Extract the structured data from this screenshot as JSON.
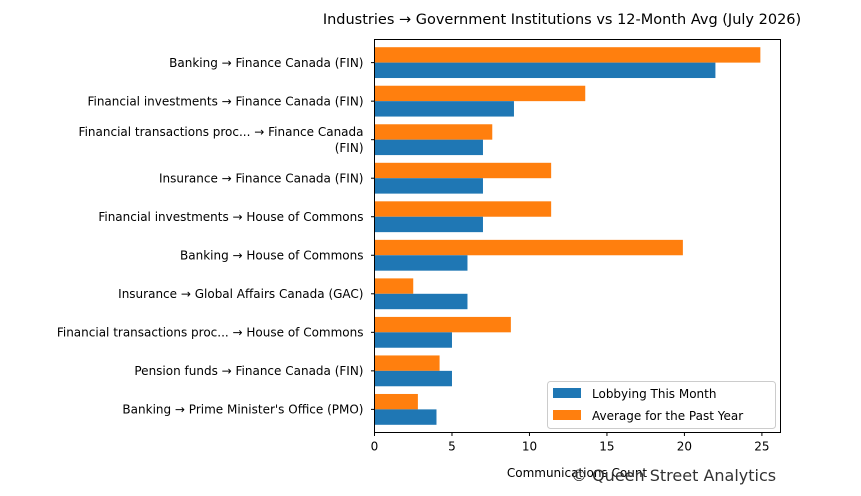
{
  "chart_data": {
    "type": "bar",
    "orientation": "horizontal",
    "title": "Industries → Government Institutions vs 12-Month Avg (July 2026)",
    "xlabel": "Communications Count",
    "ylabel": "",
    "xlim": [
      0,
      26.2
    ],
    "xticks": [
      0,
      5,
      10,
      15,
      20,
      25
    ],
    "grid": false,
    "legend_position": "lower-right",
    "categories": [
      [
        "Banking → Finance Canada (FIN)"
      ],
      [
        "Financial investments → Finance Canada (FIN)"
      ],
      [
        "Financial transactions proc... → Finance Canada",
        "(FIN)"
      ],
      [
        "Insurance → Finance Canada (FIN)"
      ],
      [
        "Financial investments → House of Commons"
      ],
      [
        "Banking → House of Commons"
      ],
      [
        "Insurance → Global Affairs Canada (GAC)"
      ],
      [
        "Financial transactions proc... → House of Commons"
      ],
      [
        "Pension funds → Finance Canada (FIN)"
      ],
      [
        "Banking → Prime Minister's Office (PMO)"
      ]
    ],
    "series": [
      {
        "name": "Lobbying This Month",
        "color": "#1f77b4",
        "values": [
          22,
          9,
          7,
          7,
          7,
          6,
          6,
          5,
          5,
          4
        ]
      },
      {
        "name": "Average for the Past Year",
        "color": "#ff7f0e",
        "values": [
          24.9,
          13.6,
          7.6,
          11.4,
          11.4,
          19.9,
          2.5,
          8.8,
          4.2,
          2.8
        ]
      }
    ]
  },
  "watermark": "© Queen Street Analytics"
}
